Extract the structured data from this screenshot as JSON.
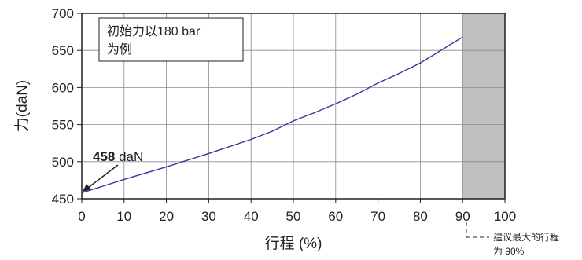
{
  "chart_data": {
    "type": "line",
    "xlabel": "行程 (%)",
    "ylabel": "力(daN)",
    "xlim": [
      0,
      100
    ],
    "ylim": [
      450,
      700
    ],
    "xticks": [
      "0",
      "10",
      "20",
      "30",
      "40",
      "50",
      "60",
      "70",
      "80",
      "90",
      "100"
    ],
    "yticks": [
      "450",
      "500",
      "550",
      "600",
      "650",
      "700"
    ],
    "grid": true,
    "series": [
      {
        "x": [
          0,
          10,
          20,
          30,
          40,
          45,
          50,
          55,
          60,
          65,
          70,
          75,
          80,
          90
        ],
        "y": [
          458,
          476,
          493,
          511,
          530,
          541,
          555,
          566,
          578,
          591,
          606,
          619,
          633,
          668
        ]
      }
    ],
    "shaded_region": {
      "x_from": 90,
      "x_to": 100,
      "color": "#c0c0c0"
    },
    "line_color": "#4a2aa0",
    "annotation_box": {
      "line1": "初始力以180 bar",
      "line2": "为例"
    },
    "start_annotation": {
      "value": "458",
      "unit": " daN"
    },
    "note": {
      "line1": "建议最大的行程",
      "line2": "为 90%"
    }
  }
}
